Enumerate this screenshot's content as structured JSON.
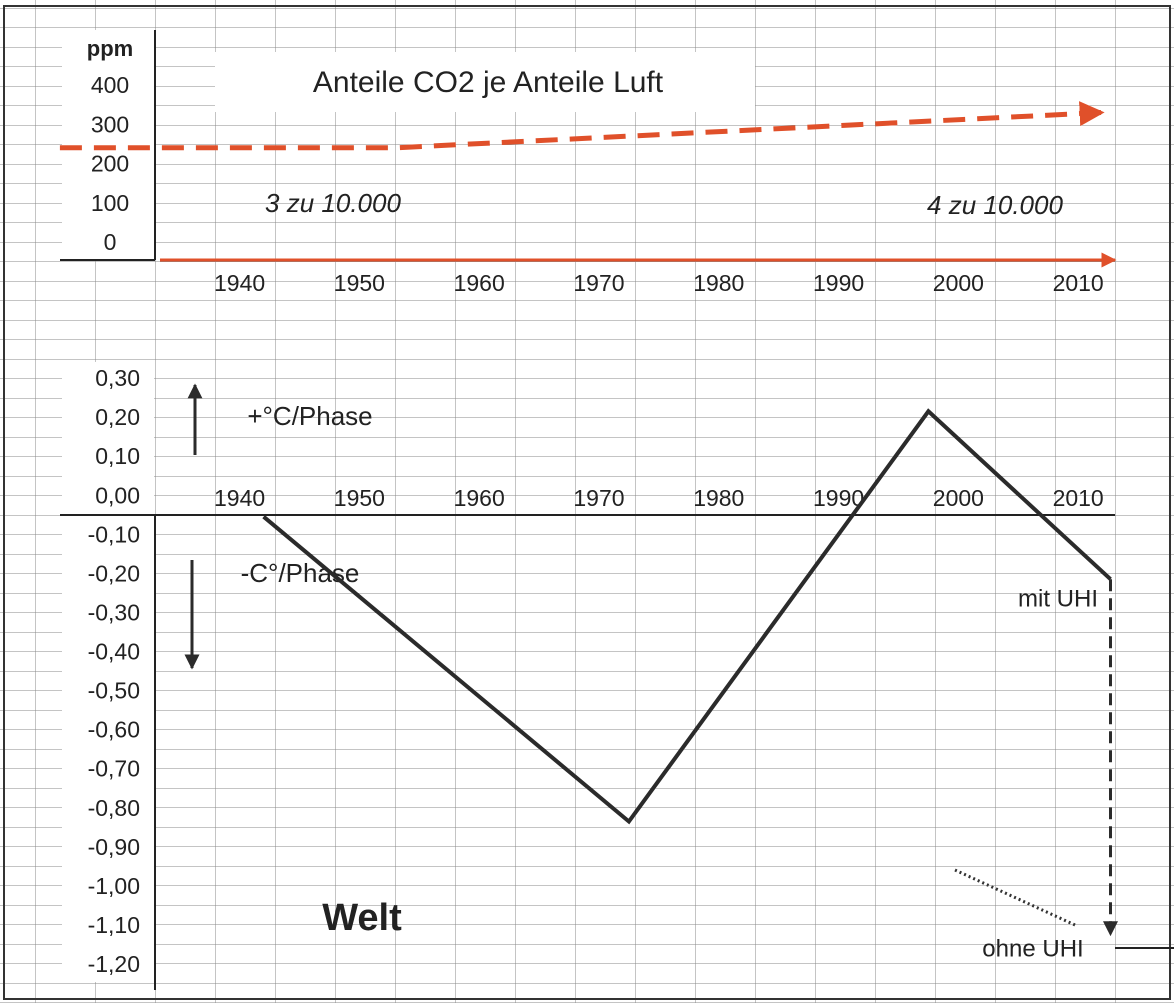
{
  "chart_data": [
    {
      "type": "line",
      "title": "Anteile CO2 je Anteile Luft",
      "y_label": "ppm",
      "annotations": [
        "3 zu 10.000",
        "4 zu 10.000"
      ],
      "xlim": [
        1920,
        2018
      ],
      "xticks": [
        1940,
        1950,
        1960,
        1970,
        1980,
        1990,
        2000,
        2010
      ],
      "ylim": [
        0,
        400
      ],
      "yticks": [
        400,
        300,
        200,
        100,
        0
      ],
      "grid": false,
      "series": [
        {
          "color": "#e0502a",
          "dash": true,
          "x": [
            1925,
            1953,
            2012
          ],
          "values": [
            245,
            245,
            335
          ]
        }
      ]
    },
    {
      "type": "line",
      "annotations": [
        "+°C/Phase",
        "-C°/Phase",
        "Welt"
      ],
      "xlim": [
        1920,
        2018
      ],
      "xticks": [
        1940,
        1950,
        1960,
        1970,
        1980,
        1990,
        2000,
        2010
      ],
      "ylim": [
        -1.2,
        0.3
      ],
      "yticks": [
        {
          "value": 0.3,
          "label": "0,30"
        },
        {
          "value": 0.2,
          "label": "0,20"
        },
        {
          "value": 0.1,
          "label": "0,10"
        },
        {
          "value": 0,
          "label": "0,00"
        },
        {
          "value": -0.1,
          "label": "-0,10"
        },
        {
          "value": -0.2,
          "label": "-0,20"
        },
        {
          "value": -0.3,
          "label": "-0,30"
        },
        {
          "value": -0.4,
          "label": "-0,40"
        },
        {
          "value": -0.5,
          "label": "-0,50"
        },
        {
          "value": -0.6,
          "label": "-0,60"
        },
        {
          "value": -0.7,
          "label": "-0,70"
        },
        {
          "value": -0.8,
          "label": "-0,80"
        },
        {
          "value": -0.9,
          "label": "-0,90"
        },
        {
          "value": -1.0,
          "label": "-1,00"
        },
        {
          "value": -1.1,
          "label": "-1,10"
        },
        {
          "value": -1.2,
          "label": "-1,20"
        }
      ],
      "grid": false,
      "series": [
        {
          "name": "mit UHI",
          "color": "#2b2b2b",
          "dash": false,
          "x": [
            1942,
            1972.5,
            1997.5,
            2012.7
          ],
          "values": [
            -0.05,
            -0.83,
            0.22,
            -0.21
          ]
        },
        {
          "name": "ohne UHI",
          "color": "#2b2b2b",
          "dash": true,
          "x": [
            2012.7,
            2012.7
          ],
          "values": [
            -0.21,
            -1.12
          ]
        }
      ]
    }
  ]
}
